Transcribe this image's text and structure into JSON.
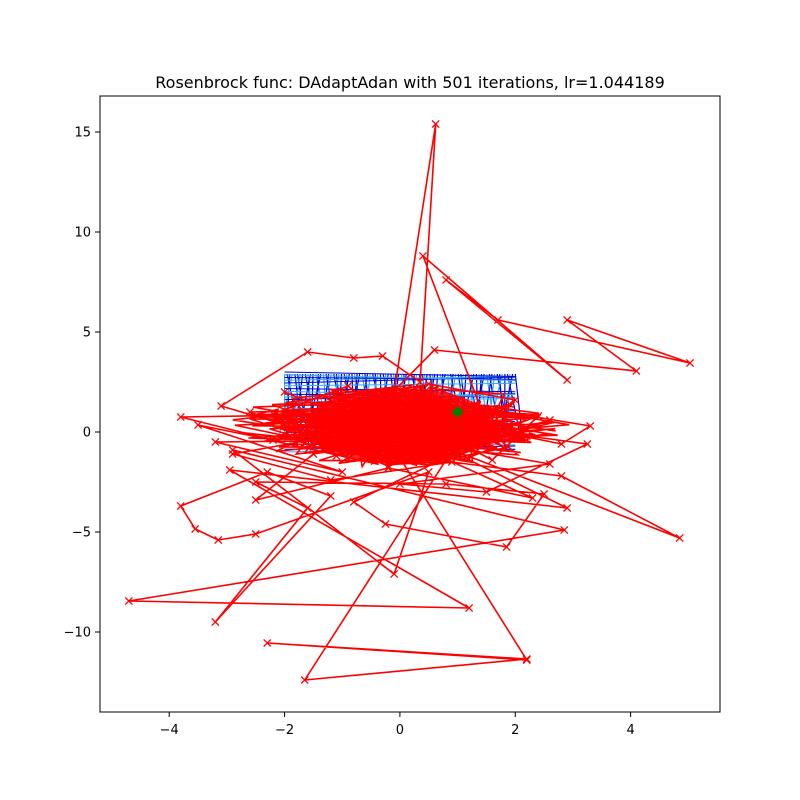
{
  "chart_data": {
    "type": "line",
    "title": "Rosenbrock func: DAdaptAdan with 501 iterations, lr=1.044189",
    "xlabel": "",
    "ylabel": "",
    "xlim": [
      -5.2,
      5.55
    ],
    "ylim": [
      -14.0,
      16.8
    ],
    "x_ticks": [
      -4,
      -2,
      0,
      2,
      4
    ],
    "x_tick_labels": [
      "−4",
      "−2",
      "0",
      "2",
      "4"
    ],
    "y_ticks": [
      -10,
      -5,
      0,
      5,
      10,
      15
    ],
    "y_tick_labels": [
      "−10",
      "−5",
      "0",
      "5",
      "10",
      "15"
    ],
    "grid": false,
    "colors": {
      "path": "#ff0000",
      "contour_dark": "#0000cc",
      "contour_light": "#33aaff",
      "minimum": "#008000",
      "axes": "#000000",
      "background": "#ffffff"
    },
    "minimum": {
      "x": 1.0,
      "y": 1.0,
      "marker": "diamond"
    },
    "contour_band": {
      "x": [
        -2.0,
        2.0
      ],
      "y": [
        -1.0,
        3.0
      ]
    },
    "series": [
      {
        "marker": "x",
        "path": [
          [
            -2.0,
            2.0
          ],
          [
            -1.3,
            1.2
          ],
          [
            -0.6,
            -0.8
          ],
          [
            0.2,
            1.5
          ],
          [
            1.2,
            -0.5
          ],
          [
            2.4,
            0.8
          ],
          [
            1.6,
            -1.4
          ],
          [
            0.3,
            0.6
          ],
          [
            -1.1,
            -1.2
          ],
          [
            -2.2,
            0.9
          ],
          [
            -0.9,
            2.3
          ],
          [
            0.7,
            -1.0
          ],
          [
            2.0,
            1.6
          ],
          [
            0.5,
            2.4
          ],
          [
            -1.8,
            0.2
          ],
          [
            -3.1,
            1.3
          ],
          [
            -1.6,
            4.0
          ],
          [
            -0.8,
            3.7
          ],
          [
            -0.3,
            3.8
          ],
          [
            0.35,
            2.5
          ],
          [
            0.62,
            15.4
          ],
          [
            -0.1,
            2.0
          ],
          [
            1.1,
            0.4
          ],
          [
            2.8,
            -0.6
          ],
          [
            3.3,
            0.3
          ],
          [
            1.4,
            1.2
          ],
          [
            0.4,
            8.8
          ],
          [
            2.9,
            2.6
          ],
          [
            0.8,
            7.6
          ],
          [
            1.7,
            5.6
          ],
          [
            5.03,
            3.45
          ],
          [
            2.9,
            5.6
          ],
          [
            4.1,
            3.05
          ],
          [
            0.6,
            4.1
          ],
          [
            -0.5,
            0.9
          ],
          [
            -3.8,
            0.75
          ],
          [
            -2.2,
            -0.4
          ],
          [
            -3.5,
            0.35
          ],
          [
            -1.0,
            -2.0
          ],
          [
            -3.2,
            -0.5
          ],
          [
            0.2,
            -0.4
          ],
          [
            2.6,
            -1.6
          ],
          [
            0.0,
            -2.6
          ],
          [
            1.5,
            -3.0
          ],
          [
            3.25,
            -0.6
          ],
          [
            1.2,
            0.2
          ],
          [
            -1.5,
            -1.1
          ],
          [
            -2.5,
            -3.4
          ],
          [
            -0.2,
            -1.8
          ],
          [
            2.3,
            -3.3
          ],
          [
            -0.4,
            0.2
          ],
          [
            -2.9,
            -1.1
          ],
          [
            -1.2,
            -2.4
          ],
          [
            0.9,
            -1.5
          ],
          [
            2.8,
            -2.2
          ],
          [
            4.85,
            -5.3
          ],
          [
            1.0,
            -1.0
          ],
          [
            -0.8,
            -3.5
          ],
          [
            -0.25,
            -4.6
          ],
          [
            1.85,
            -5.75
          ],
          [
            2.5,
            -3.1
          ],
          [
            0.8,
            -2.6
          ],
          [
            -2.5,
            -2.5
          ],
          [
            -1.6,
            -3.8
          ],
          [
            -3.2,
            -9.5
          ],
          [
            -1.2,
            -3.2
          ],
          [
            -2.3,
            -2.0
          ],
          [
            -3.8,
            -3.7
          ],
          [
            -3.55,
            -4.85
          ],
          [
            -3.15,
            -5.4
          ],
          [
            -2.5,
            -5.1
          ],
          [
            0.5,
            -2.0
          ],
          [
            -0.1,
            -7.1
          ],
          [
            -2.9,
            -0.9
          ],
          [
            2.85,
            -4.9
          ],
          [
            -4.7,
            -8.45
          ],
          [
            1.2,
            -8.8
          ],
          [
            -2.95,
            -1.9
          ],
          [
            2.9,
            -3.8
          ],
          [
            -0.5,
            1.0
          ],
          [
            2.2,
            -11.4
          ],
          [
            -2.3,
            -10.55
          ],
          [
            2.2,
            -11.35
          ],
          [
            -1.65,
            -12.4
          ],
          [
            0.8,
            -1.4
          ],
          [
            2.6,
            0.6
          ],
          [
            -0.2,
            -1.7
          ],
          [
            -2.6,
            1.0
          ],
          [
            0.9,
            1.2
          ],
          [
            2.2,
            -0.2
          ],
          [
            -1.4,
            0.5
          ],
          [
            0.5,
            -0.3
          ],
          [
            1.9,
            1.4
          ],
          [
            -0.7,
            -0.9
          ],
          [
            1.0,
            1.0
          ]
        ]
      }
    ]
  }
}
